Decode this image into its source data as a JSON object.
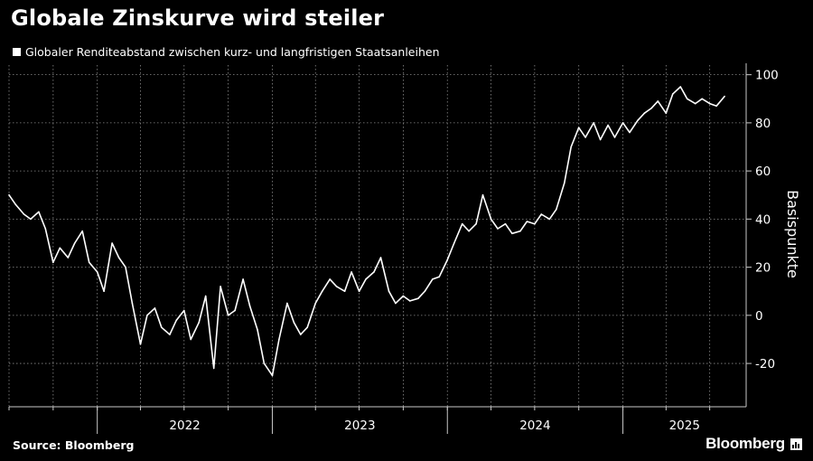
{
  "header": {
    "title": "Globale Zinskurve wird steiler"
  },
  "legend": {
    "label": "Globaler Renditeabstand zwischen kurz- und langfristigen Staatsanleihen"
  },
  "footer": {
    "source": "Source: Bloomberg",
    "brand": "Bloomberg"
  },
  "colors": {
    "background": "#000000",
    "line": "#ffffff",
    "grid": "#8a8a8a",
    "axis": "#c8c8c8"
  },
  "chart_data": {
    "type": "line",
    "title": "Globale Zinskurve wird steiler",
    "ylabel": "Basispunkte",
    "y_axis_side": "right",
    "ylim": [
      -38,
      104
    ],
    "xlim": [
      "2021-07-01",
      "2025-09-15"
    ],
    "yticks": [
      -20,
      0,
      20,
      40,
      60,
      80,
      100
    ],
    "ytick_labels": [
      "-20",
      "0",
      "20",
      "40",
      "60",
      "80",
      "100"
    ],
    "xtick_labels": [
      "2022",
      "2023",
      "2024",
      "2025"
    ],
    "grid": true,
    "legend_position": "top-left",
    "series": [
      {
        "name": "Globaler Renditeabstand zwischen kurz- und langfristigen Staatsanleihen",
        "x": [
          "2021-07-01",
          "2021-07-15",
          "2021-08-01",
          "2021-08-15",
          "2021-09-01",
          "2021-09-15",
          "2021-10-01",
          "2021-10-15",
          "2021-11-01",
          "2021-11-15",
          "2021-12-01",
          "2021-12-15",
          "2022-01-01",
          "2022-01-15",
          "2022-02-01",
          "2022-02-15",
          "2022-03-01",
          "2022-03-15",
          "2022-04-01",
          "2022-04-15",
          "2022-05-01",
          "2022-05-15",
          "2022-06-01",
          "2022-06-15",
          "2022-07-01",
          "2022-07-15",
          "2022-08-01",
          "2022-08-15",
          "2022-09-01",
          "2022-09-15",
          "2022-10-01",
          "2022-10-15",
          "2022-11-01",
          "2022-11-15",
          "2022-12-01",
          "2022-12-15",
          "2023-01-01",
          "2023-01-15",
          "2023-02-01",
          "2023-02-15",
          "2023-03-01",
          "2023-03-15",
          "2023-04-01",
          "2023-04-15",
          "2023-05-01",
          "2023-05-15",
          "2023-06-01",
          "2023-06-15",
          "2023-07-01",
          "2023-07-15",
          "2023-08-01",
          "2023-08-15",
          "2023-09-01",
          "2023-09-15",
          "2023-10-01",
          "2023-10-15",
          "2023-11-01",
          "2023-11-15",
          "2023-12-01",
          "2023-12-15",
          "2024-01-01",
          "2024-01-15",
          "2024-02-01",
          "2024-02-15",
          "2024-03-01",
          "2024-03-15",
          "2024-04-01",
          "2024-04-15",
          "2024-05-01",
          "2024-05-15",
          "2024-06-01",
          "2024-06-15",
          "2024-07-01",
          "2024-07-15",
          "2024-08-01",
          "2024-08-15",
          "2024-09-01",
          "2024-09-15",
          "2024-10-01",
          "2024-10-15",
          "2024-11-01",
          "2024-11-15",
          "2024-12-01",
          "2024-12-15",
          "2025-01-01",
          "2025-01-15",
          "2025-02-01",
          "2025-02-15",
          "2025-03-01",
          "2025-03-15",
          "2025-04-01",
          "2025-04-15",
          "2025-05-01",
          "2025-05-15",
          "2025-06-01",
          "2025-06-15",
          "2025-07-01",
          "2025-07-15",
          "2025-08-01"
        ],
        "y": [
          50,
          46,
          42,
          40,
          43,
          36,
          22,
          28,
          24,
          30,
          35,
          22,
          18,
          10,
          30,
          24,
          20,
          5,
          -12,
          0,
          3,
          -5,
          -8,
          -2,
          2,
          -10,
          -3,
          8,
          -22,
          12,
          0,
          2,
          15,
          4,
          -6,
          -20,
          -25,
          -10,
          5,
          -3,
          -8,
          -5,
          5,
          10,
          15,
          12,
          10,
          18,
          10,
          15,
          18,
          24,
          10,
          5,
          8,
          6,
          7,
          10,
          15,
          16,
          23,
          30,
          38,
          35,
          38,
          50,
          40,
          36,
          38,
          34,
          35,
          39,
          38,
          42,
          40,
          44,
          55,
          70,
          78,
          74,
          80,
          73,
          79,
          74,
          80,
          76,
          81,
          84,
          86,
          89,
          84,
          92,
          95,
          90,
          88,
          90,
          88,
          87,
          91
        ]
      }
    ]
  }
}
